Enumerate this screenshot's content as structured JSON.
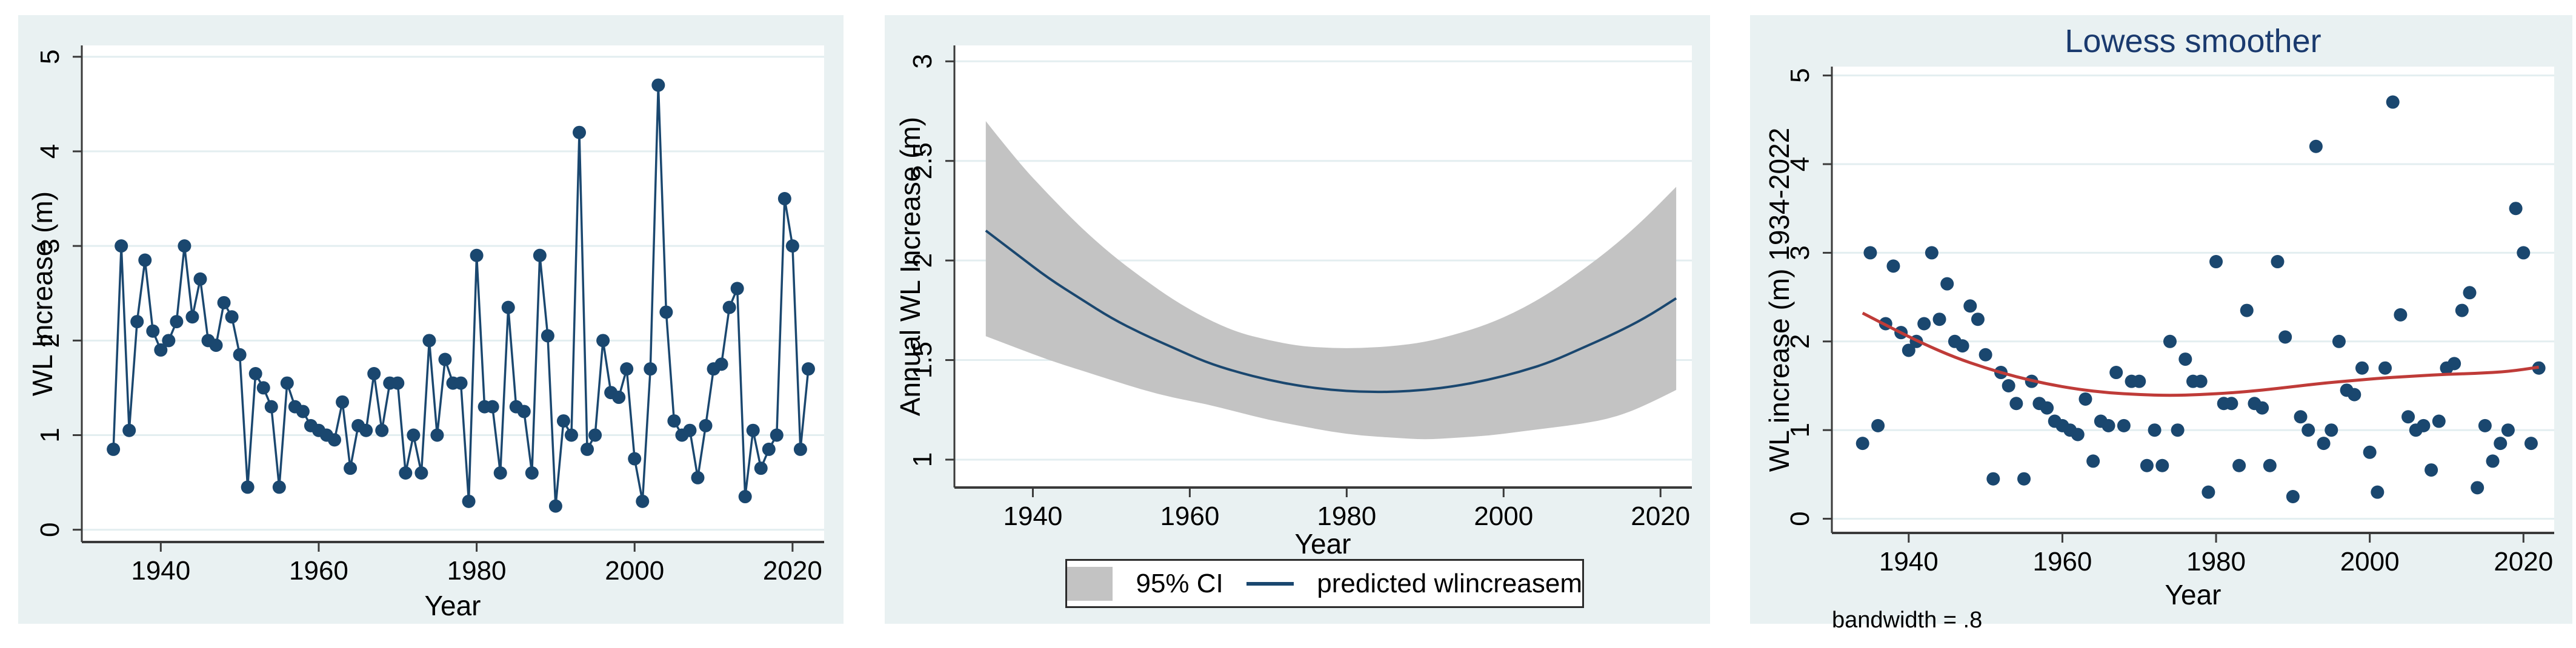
{
  "colors": {
    "panel_background": "#e9f1f2",
    "plot_background": "#ffffff",
    "gridline": "#e3eef0",
    "axis": "#3a3a3a",
    "series_navy": "#1a476f",
    "lowess_red": "#bf3b38",
    "ci_band_gray": "#c3c3c3",
    "title_navy": "#1a3a6e"
  },
  "panels": {
    "timeseries": {
      "ylabel": "WL Increase (m)",
      "xlabel": "Year"
    },
    "regression": {
      "ylabel": "Annual WL Increase (m)",
      "xlabel": "Year",
      "legend": {
        "band_label": "95% CI",
        "line_label": "predicted wlincreasem"
      }
    },
    "lowess": {
      "title": "Lowess smoother",
      "ylabel": "WL increase (m) 1934-2022",
      "xlabel": "Year",
      "note": "bandwidth = .8"
    }
  },
  "chart_data": [
    {
      "type": "line",
      "title": "",
      "xlabel": "Year",
      "ylabel": "WL Increase (m)",
      "legend_position": "none",
      "grid": true,
      "marker": true,
      "xlim": [
        1930,
        2024
      ],
      "ylim": [
        -0.13,
        5.12
      ],
      "xticks": [
        1940,
        1960,
        1980,
        2000,
        2020
      ],
      "yticks": [
        0,
        1,
        2,
        3,
        4,
        5
      ],
      "x": [
        1934,
        1935,
        1936,
        1937,
        1938,
        1939,
        1940,
        1941,
        1942,
        1943,
        1944,
        1945,
        1946,
        1947,
        1948,
        1949,
        1950,
        1951,
        1952,
        1953,
        1954,
        1955,
        1956,
        1957,
        1958,
        1959,
        1960,
        1961,
        1962,
        1963,
        1964,
        1965,
        1966,
        1967,
        1968,
        1969,
        1970,
        1971,
        1972,
        1973,
        1974,
        1975,
        1976,
        1977,
        1978,
        1979,
        1980,
        1981,
        1982,
        1983,
        1984,
        1985,
        1986,
        1987,
        1988,
        1989,
        1990,
        1991,
        1992,
        1993,
        1994,
        1995,
        1996,
        1997,
        1998,
        1999,
        2000,
        2001,
        2002,
        2003,
        2004,
        2005,
        2006,
        2007,
        2008,
        2009,
        2010,
        2011,
        2012,
        2013,
        2014,
        2015,
        2016,
        2017,
        2018,
        2019,
        2020,
        2021,
        2022
      ],
      "y": [
        0.85,
        3.0,
        1.05,
        2.2,
        2.85,
        2.1,
        1.9,
        2.0,
        2.2,
        3.0,
        2.25,
        2.65,
        2.0,
        1.95,
        2.4,
        2.25,
        1.85,
        0.45,
        1.65,
        1.5,
        1.3,
        0.45,
        1.55,
        1.3,
        1.25,
        1.1,
        1.05,
        1.0,
        0.95,
        1.35,
        0.65,
        1.1,
        1.05,
        1.65,
        1.05,
        1.55,
        1.55,
        0.6,
        1.0,
        0.6,
        2.0,
        1.0,
        1.8,
        1.55,
        1.55,
        0.3,
        2.9,
        1.3,
        1.3,
        0.6,
        2.35,
        1.3,
        1.25,
        0.6,
        2.9,
        2.05,
        0.25,
        1.15,
        1.0,
        4.2,
        0.85,
        1.0,
        2.0,
        1.45,
        1.4,
        1.7,
        0.75,
        0.3,
        1.7,
        4.7,
        2.3,
        1.15,
        1.0,
        1.05,
        0.55,
        1.1,
        1.7,
        1.75,
        2.35,
        2.55,
        0.35,
        1.05,
        0.65,
        0.85,
        1.0,
        3.5,
        3.0,
        0.85,
        1.7
      ]
    },
    {
      "type": "area",
      "title": "",
      "xlabel": "Year",
      "ylabel": "Annual WL Increase (m)",
      "legend_position": "bottom",
      "legend": [
        "95% CI",
        "predicted wlincreasem"
      ],
      "grid": true,
      "xlim": [
        1930,
        2024
      ],
      "ylim": [
        0.86,
        3.08
      ],
      "xticks": [
        1940,
        1960,
        1980,
        2000,
        2020
      ],
      "yticks": [
        1,
        1.5,
        2,
        2.5,
        3
      ],
      "x": [
        1934,
        1938,
        1942,
        1946,
        1950,
        1954,
        1958,
        1962,
        1966,
        1970,
        1974,
        1978,
        1982,
        1986,
        1990,
        1994,
        1998,
        2002,
        2006,
        2010,
        2014,
        2018,
        2022
      ],
      "fit": [
        2.15,
        2.03,
        1.91,
        1.81,
        1.71,
        1.63,
        1.56,
        1.49,
        1.44,
        1.4,
        1.37,
        1.35,
        1.34,
        1.34,
        1.35,
        1.37,
        1.4,
        1.44,
        1.49,
        1.56,
        1.63,
        1.71,
        1.81
      ],
      "ci_upper": [
        2.7,
        2.5,
        2.33,
        2.17,
        2.03,
        1.91,
        1.8,
        1.71,
        1.64,
        1.6,
        1.57,
        1.56,
        1.56,
        1.57,
        1.59,
        1.63,
        1.68,
        1.75,
        1.84,
        1.95,
        2.07,
        2.21,
        2.37
      ],
      "ci_lower": [
        1.62,
        1.56,
        1.5,
        1.45,
        1.4,
        1.35,
        1.31,
        1.28,
        1.24,
        1.2,
        1.17,
        1.14,
        1.12,
        1.11,
        1.1,
        1.11,
        1.12,
        1.14,
        1.16,
        1.18,
        1.21,
        1.27,
        1.35
      ]
    },
    {
      "type": "scatter",
      "title": "Lowess smoother",
      "xlabel": "Year",
      "ylabel": "WL increase (m) 1934-2022",
      "note": "bandwidth = .8",
      "bandwidth": 0.8,
      "legend_position": "none",
      "grid": true,
      "xlim": [
        1930,
        2024
      ],
      "ylim": [
        -0.16,
        5.1
      ],
      "xticks": [
        1940,
        1960,
        1980,
        2000,
        2020
      ],
      "yticks": [
        0,
        1,
        2,
        3,
        4,
        5
      ],
      "x": [
        1934,
        1935,
        1936,
        1937,
        1938,
        1939,
        1940,
        1941,
        1942,
        1943,
        1944,
        1945,
        1946,
        1947,
        1948,
        1949,
        1950,
        1951,
        1952,
        1953,
        1954,
        1955,
        1956,
        1957,
        1958,
        1959,
        1960,
        1961,
        1962,
        1963,
        1964,
        1965,
        1966,
        1967,
        1968,
        1969,
        1970,
        1971,
        1972,
        1973,
        1974,
        1975,
        1976,
        1977,
        1978,
        1979,
        1980,
        1981,
        1982,
        1983,
        1984,
        1985,
        1986,
        1987,
        1988,
        1989,
        1990,
        1991,
        1992,
        1993,
        1994,
        1995,
        1996,
        1997,
        1998,
        1999,
        2000,
        2001,
        2002,
        2003,
        2004,
        2005,
        2006,
        2007,
        2008,
        2009,
        2010,
        2011,
        2012,
        2013,
        2014,
        2015,
        2016,
        2017,
        2018,
        2019,
        2020,
        2021,
        2022
      ],
      "y": [
        0.85,
        3.0,
        1.05,
        2.2,
        2.85,
        2.1,
        1.9,
        2.0,
        2.2,
        3.0,
        2.25,
        2.65,
        2.0,
        1.95,
        2.4,
        2.25,
        1.85,
        0.45,
        1.65,
        1.5,
        1.3,
        0.45,
        1.55,
        1.3,
        1.25,
        1.1,
        1.05,
        1.0,
        0.95,
        1.35,
        0.65,
        1.1,
        1.05,
        1.65,
        1.05,
        1.55,
        1.55,
        0.6,
        1.0,
        0.6,
        2.0,
        1.0,
        1.8,
        1.55,
        1.55,
        0.3,
        2.9,
        1.3,
        1.3,
        0.6,
        2.35,
        1.3,
        1.25,
        0.6,
        2.9,
        2.05,
        0.25,
        1.15,
        1.0,
        4.2,
        0.85,
        1.0,
        2.0,
        1.45,
        1.4,
        1.7,
        0.75,
        0.3,
        1.7,
        4.7,
        2.3,
        1.15,
        1.0,
        1.05,
        0.55,
        1.1,
        1.7,
        1.75,
        2.35,
        2.55,
        0.35,
        1.05,
        0.65,
        0.85,
        1.0,
        3.5,
        3.0,
        0.85,
        1.7
      ],
      "lowess_x": [
        1934,
        1938,
        1942,
        1946,
        1950,
        1954,
        1958,
        1962,
        1966,
        1970,
        1974,
        1978,
        1982,
        1986,
        1990,
        1994,
        1998,
        2002,
        2006,
        2010,
        2014,
        2018,
        2022
      ],
      "lowess_y": [
        2.32,
        2.14,
        1.97,
        1.82,
        1.7,
        1.6,
        1.52,
        1.46,
        1.42,
        1.4,
        1.39,
        1.4,
        1.42,
        1.45,
        1.49,
        1.53,
        1.56,
        1.59,
        1.61,
        1.63,
        1.64,
        1.66,
        1.71
      ]
    }
  ]
}
